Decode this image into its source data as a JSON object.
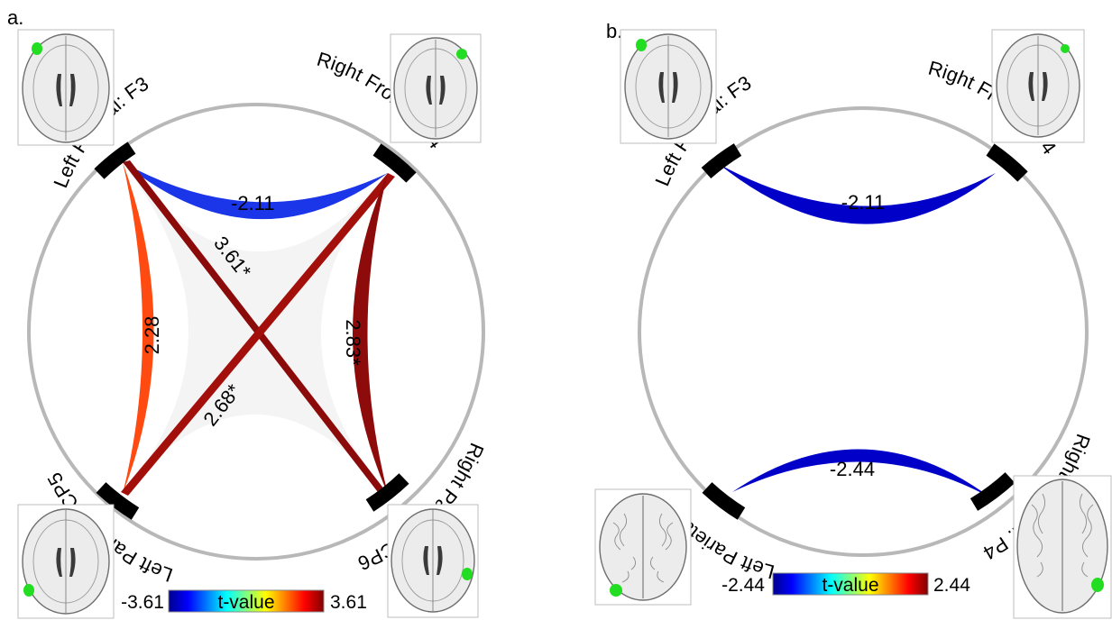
{
  "colors": {
    "negative": "#1a36e8",
    "positive_high": "#8b0a0a",
    "positive_mid": "#ff4010",
    "colormap": [
      "#00008f",
      "#0000ff",
      "#00ffff",
      "#ffff00",
      "#ff0000",
      "#800000"
    ],
    "electrode": "#22dd22",
    "circle": "#b8b8b8"
  },
  "panels": [
    {
      "id": "a",
      "label": "a.",
      "nodes": [
        {
          "name": "Left Frontal: F3",
          "key": "F3"
        },
        {
          "name": "Right Frontal: F4",
          "key": "F4"
        },
        {
          "name": "Left Parietal: CP5",
          "key": "CP5"
        },
        {
          "name": "Right Parietal: CP6",
          "key": "CP6"
        }
      ],
      "edges": [
        {
          "from": "F3",
          "to": "F4",
          "value": "-2.11",
          "t": -2.11
        },
        {
          "from": "F3",
          "to": "CP5",
          "value": "2.28",
          "t": 2.28
        },
        {
          "from": "F3",
          "to": "CP6",
          "value": "3.61*",
          "t": 3.61
        },
        {
          "from": "F4",
          "to": "CP5",
          "value": "2.68*",
          "t": 2.68
        },
        {
          "from": "F4",
          "to": "CP6",
          "value": "2.83*",
          "t": 2.83
        }
      ],
      "colorbar": {
        "min": "-3.61",
        "max": "3.61",
        "label": "t-value"
      }
    },
    {
      "id": "b",
      "label": "b.",
      "nodes": [
        {
          "name": "Left Frontal: F3",
          "key": "F3"
        },
        {
          "name": "Right Frontal: F4",
          "key": "F4"
        },
        {
          "name": "Left Parietal: P3",
          "key": "P3"
        },
        {
          "name": "Right Parietal: P4",
          "key": "P4"
        }
      ],
      "edges": [
        {
          "from": "F3",
          "to": "F4",
          "value": "-2.11",
          "t": -2.11
        },
        {
          "from": "P3",
          "to": "P4",
          "value": "-2.44",
          "t": -2.44
        }
      ],
      "colorbar": {
        "min": "-2.44",
        "max": "2.44",
        "label": "t-value"
      }
    }
  ]
}
